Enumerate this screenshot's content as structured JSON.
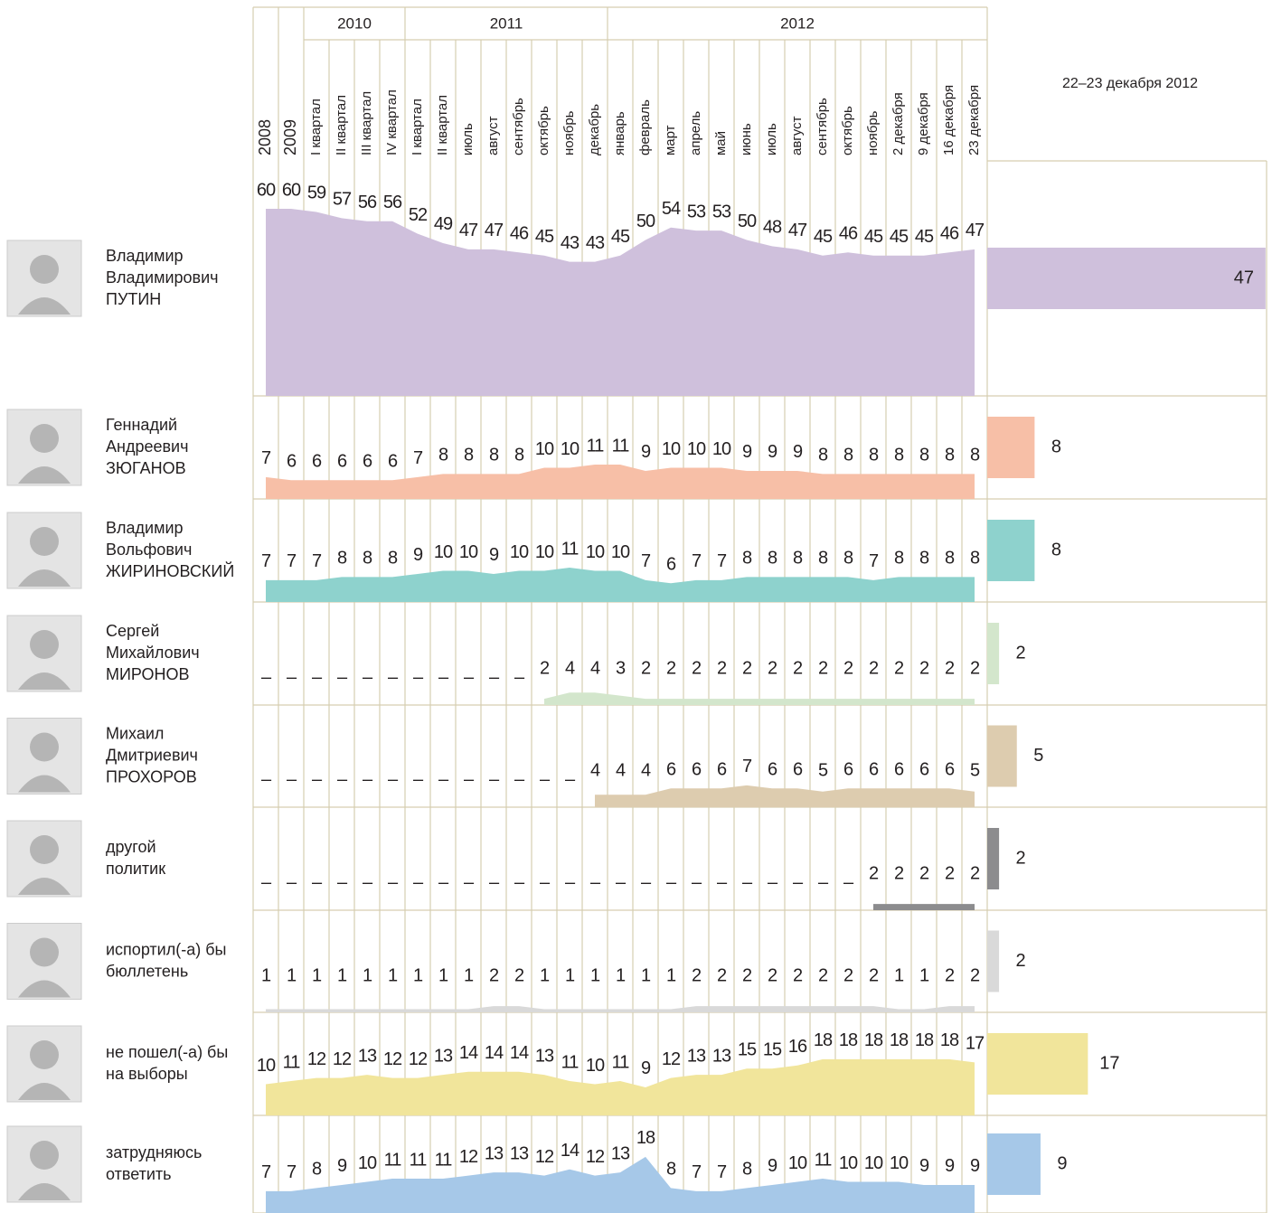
{
  "chart_data": {
    "type": "area",
    "categories": [
      "2008",
      "2009",
      "I квартал",
      "II квартал",
      "III квартал",
      "IV квартал",
      "I квартал",
      "II квартал",
      "июль",
      "август",
      "сентябрь",
      "октябрь",
      "ноябрь",
      "декабрь",
      "январь",
      "февраль",
      "март",
      "апрель",
      "май",
      "июнь",
      "июль",
      "август",
      "сентябрь",
      "октябрь",
      "ноябрь",
      "2 декабря",
      "9 декабря",
      "16 декабря",
      "23 декабря"
    ],
    "year_groups": [
      "2010",
      "2011",
      "2012"
    ],
    "current_label": "22–23 декабря 2012",
    "series": [
      {
        "name": [
          "Владимир",
          "Владимирович",
          "ПУТИН"
        ],
        "color": "#cfc0dc",
        "values": [
          60,
          60,
          59,
          57,
          56,
          56,
          52,
          49,
          47,
          47,
          46,
          45,
          43,
          43,
          45,
          50,
          54,
          53,
          53,
          50,
          48,
          47,
          45,
          46,
          45,
          45,
          45,
          46,
          47
        ],
        "value_labels": [
          "60",
          "60",
          "59",
          "57",
          "56",
          "56",
          "52",
          "49",
          "47",
          "47",
          "46",
          "45",
          "43",
          "43",
          "45",
          "50",
          "54",
          "53",
          "53",
          "50",
          "48",
          "47",
          "45",
          "46",
          "45",
          "45",
          "45",
          "46",
          "47"
        ],
        "current": 47
      },
      {
        "name": [
          "Геннадий",
          "Андреевич",
          "ЗЮГАНОВ"
        ],
        "color": "#f7bfa7",
        "values": [
          7,
          6,
          6,
          6,
          6,
          6,
          7,
          8,
          8,
          8,
          8,
          10,
          10,
          11,
          11,
          9,
          10,
          10,
          10,
          9,
          9,
          9,
          8,
          8,
          8,
          8,
          8,
          8,
          8
        ],
        "value_labels": [
          "7",
          "6",
          "6",
          "6",
          "6",
          "6",
          "7",
          "8",
          "8",
          "8",
          "8",
          "10",
          "10",
          "11",
          "11",
          "9",
          "10",
          "10",
          "10",
          "9",
          "9",
          "9",
          "8",
          "8",
          "8",
          "8",
          "8",
          "8",
          "8"
        ],
        "current": 8
      },
      {
        "name": [
          "Владимир",
          "Вольфович",
          "ЖИРИНОВСКИЙ"
        ],
        "color": "#8ed2cd",
        "values": [
          7,
          7,
          7,
          8,
          8,
          8,
          9,
          10,
          10,
          9,
          10,
          10,
          11,
          10,
          10,
          7,
          6,
          7,
          7,
          8,
          8,
          8,
          8,
          8,
          7,
          8,
          8,
          8,
          8
        ],
        "value_labels": [
          "7",
          "7",
          "7",
          "8",
          "8",
          "8",
          "9",
          "10",
          "10",
          "9",
          "10",
          "10",
          "11",
          "10",
          "10",
          "7",
          "6",
          "7",
          "7",
          "8",
          "8",
          "8",
          "8",
          "8",
          "7",
          "8",
          "8",
          "8",
          "8"
        ],
        "current": 8
      },
      {
        "name": [
          "Сергей",
          "Михайлович",
          "МИРОНОВ"
        ],
        "color": "#d3e6cc",
        "values": [
          null,
          null,
          null,
          null,
          null,
          null,
          null,
          null,
          null,
          null,
          null,
          2,
          4,
          4,
          3,
          2,
          2,
          2,
          2,
          2,
          2,
          2,
          2,
          2,
          2,
          2,
          2,
          2,
          2
        ],
        "value_labels": [
          "–",
          "–",
          "–",
          "–",
          "–",
          "–",
          "–",
          "–",
          "–",
          "–",
          "–",
          "2",
          "4",
          "4",
          "3",
          "2",
          "2",
          "2",
          "2",
          "2",
          "2",
          "2",
          "2",
          "2",
          "2",
          "2",
          "2",
          "2",
          "2"
        ],
        "current": 2
      },
      {
        "name": [
          "Михаил",
          "Дмитриевич",
          "ПРОХОРОВ"
        ],
        "color": "#ddccaf",
        "values": [
          null,
          null,
          null,
          null,
          null,
          null,
          null,
          null,
          null,
          null,
          null,
          null,
          null,
          4,
          4,
          4,
          6,
          6,
          6,
          7,
          6,
          6,
          5,
          6,
          6,
          6,
          6,
          6,
          5
        ],
        "value_labels": [
          "–",
          "–",
          "–",
          "–",
          "–",
          "–",
          "–",
          "–",
          "–",
          "–",
          "–",
          "–",
          "–",
          "4",
          "4",
          "4",
          "6",
          "6",
          "6",
          "7",
          "6",
          "6",
          "5",
          "6",
          "6",
          "6",
          "6",
          "6",
          "5"
        ],
        "current": 5
      },
      {
        "name": [
          "другой",
          "политик"
        ],
        "color": "#8c8c8e",
        "values": [
          null,
          null,
          null,
          null,
          null,
          null,
          null,
          null,
          null,
          null,
          null,
          null,
          null,
          null,
          null,
          null,
          null,
          null,
          null,
          null,
          null,
          null,
          null,
          null,
          2,
          2,
          2,
          2,
          2
        ],
        "value_labels": [
          "–",
          "–",
          "–",
          "–",
          "–",
          "–",
          "–",
          "–",
          "–",
          "–",
          "–",
          "–",
          "–",
          "–",
          "–",
          "–",
          "–",
          "–",
          "–",
          "–",
          "–",
          "–",
          "–",
          "–",
          "2",
          "2",
          "2",
          "2",
          "2"
        ],
        "current": 2
      },
      {
        "name": [
          "испортил(-а) бы",
          "бюллетень"
        ],
        "color": "#d9d9d9",
        "values": [
          1,
          1,
          1,
          1,
          1,
          1,
          1,
          1,
          1,
          2,
          2,
          1,
          1,
          1,
          1,
          1,
          1,
          2,
          2,
          2,
          2,
          2,
          2,
          2,
          2,
          1,
          1,
          2,
          2
        ],
        "value_labels": [
          "1",
          "1",
          "1",
          "1",
          "1",
          "1",
          "1",
          "1",
          "1",
          "2",
          "2",
          "1",
          "1",
          "1",
          "1",
          "1",
          "1",
          "2",
          "2",
          "2",
          "2",
          "2",
          "2",
          "2",
          "2",
          "1",
          "1",
          "2",
          "2"
        ],
        "current": 2
      },
      {
        "name": [
          "не пошел(-а) бы",
          "на выборы"
        ],
        "color": "#f1e59b",
        "values": [
          10,
          11,
          12,
          12,
          13,
          12,
          12,
          13,
          14,
          14,
          14,
          13,
          11,
          10,
          11,
          9,
          12,
          13,
          13,
          15,
          15,
          16,
          18,
          18,
          18,
          18,
          18,
          18,
          17
        ],
        "value_labels": [
          "10",
          "11",
          "12",
          "12",
          "13",
          "12",
          "12",
          "13",
          "14",
          "14",
          "14",
          "13",
          "11",
          "10",
          "11",
          "9",
          "12",
          "13",
          "13",
          "15",
          "15",
          "16",
          "18",
          "18",
          "18",
          "18",
          "18",
          "18",
          "17"
        ],
        "current": 17
      },
      {
        "name": [
          "затрудняюсь",
          "ответить"
        ],
        "color": "#a6c8e8",
        "values": [
          7,
          7,
          8,
          9,
          10,
          11,
          11,
          11,
          12,
          13,
          13,
          12,
          14,
          12,
          13,
          18,
          8,
          7,
          7,
          8,
          9,
          10,
          11,
          10,
          10,
          10,
          9,
          9,
          9
        ],
        "value_labels": [
          "7",
          "7",
          "8",
          "9",
          "10",
          "11",
          "11",
          "11",
          "12",
          "13",
          "13",
          "12",
          "14",
          "12",
          "13",
          "18",
          "8",
          "7",
          "7",
          "8",
          "9",
          "10",
          "11",
          "10",
          "10",
          "10",
          "9",
          "9",
          "9"
        ],
        "current": 9
      }
    ]
  }
}
